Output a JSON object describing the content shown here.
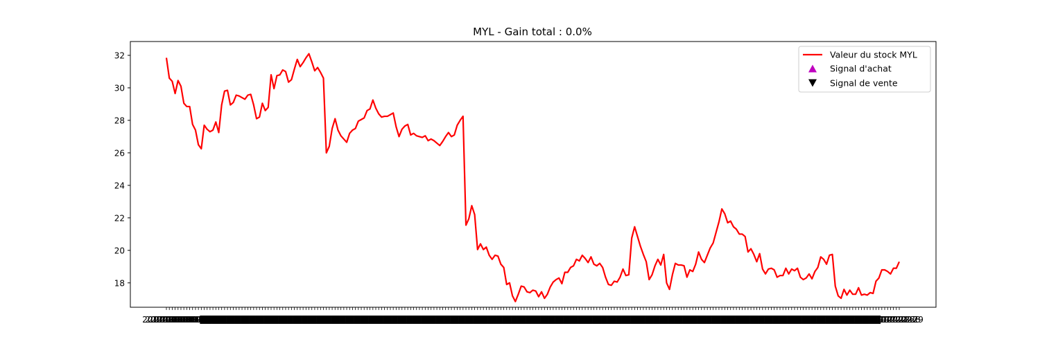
{
  "chart_data": {
    "type": "line",
    "title": "MYL - Gain total : 0.0%",
    "xlabel": "",
    "ylabel": "",
    "ylim": [
      16.5,
      32.85
    ],
    "yticks": [
      18,
      20,
      22,
      24,
      26,
      28,
      30,
      32
    ],
    "grid": false,
    "legend_position": "top-right",
    "line_color": "#ff0000",
    "buy_color": "#bf00bf",
    "sell_color": "#000000",
    "series": [
      {
        "name": "Valeur du stock MYL",
        "values": [
          31.85,
          30.6,
          30.4,
          29.65,
          30.45,
          30.1,
          29.05,
          28.85,
          28.85,
          27.75,
          27.4,
          26.5,
          26.25,
          27.7,
          27.45,
          27.3,
          27.4,
          27.9,
          27.25,
          28.95,
          29.8,
          29.85,
          28.95,
          29.1,
          29.55,
          29.5,
          29.4,
          29.3,
          29.55,
          29.6,
          28.95,
          28.1,
          28.2,
          29.05,
          28.6,
          28.8,
          30.8,
          29.95,
          30.75,
          30.8,
          31.1,
          31.0,
          30.35,
          30.5,
          31.15,
          31.75,
          31.3,
          31.55,
          31.85,
          32.1,
          31.6,
          31.05,
          31.25,
          30.95,
          30.6,
          26.0,
          26.4,
          27.5,
          28.1,
          27.4,
          27.05,
          26.85,
          26.65,
          27.2,
          27.4,
          27.5,
          27.95,
          28.05,
          28.15,
          28.6,
          28.7,
          29.25,
          28.75,
          28.4,
          28.2,
          28.25,
          28.25,
          28.35,
          28.45,
          27.6,
          27.0,
          27.45,
          27.65,
          27.75,
          27.1,
          27.2,
          27.05,
          27.0,
          26.95,
          27.05,
          26.75,
          26.85,
          26.75,
          26.6,
          26.45,
          26.7,
          27.0,
          27.25,
          27.0,
          27.1,
          27.7,
          28.0,
          28.25,
          21.55,
          21.95,
          22.75,
          22.2,
          20.05,
          20.4,
          20.05,
          20.2,
          19.7,
          19.45,
          19.7,
          19.65,
          19.15,
          18.95,
          17.9,
          18.0,
          17.2,
          16.85,
          17.3,
          17.8,
          17.75,
          17.45,
          17.4,
          17.55,
          17.5,
          17.15,
          17.45,
          17.05,
          17.3,
          17.75,
          18.05,
          18.2,
          18.3,
          17.95,
          18.65,
          18.65,
          18.95,
          19.05,
          19.45,
          19.35,
          19.7,
          19.5,
          19.25,
          19.6,
          19.15,
          19.05,
          19.2,
          18.95,
          18.35,
          17.9,
          17.85,
          18.1,
          18.05,
          18.35,
          18.85,
          18.45,
          18.5,
          20.75,
          21.45,
          20.85,
          20.25,
          19.75,
          19.3,
          18.2,
          18.5,
          19.05,
          19.45,
          19.1,
          19.75,
          18.0,
          17.6,
          18.5,
          19.2,
          19.1,
          19.1,
          19.05,
          18.35,
          18.8,
          18.7,
          19.15,
          19.9,
          19.45,
          19.25,
          19.7,
          20.15,
          20.45,
          21.1,
          21.75,
          22.55,
          22.25,
          21.7,
          21.8,
          21.45,
          21.3,
          21.0,
          21.0,
          20.85,
          19.9,
          20.1,
          19.75,
          19.3,
          19.8,
          18.85,
          18.55,
          18.85,
          18.9,
          18.8,
          18.35,
          18.45,
          18.45,
          18.9,
          18.55,
          18.85,
          18.75,
          18.9,
          18.35,
          18.2,
          18.3,
          18.55,
          18.25,
          18.7,
          18.95,
          19.6,
          19.45,
          19.15,
          19.7,
          19.75,
          17.8,
          17.2,
          17.05,
          17.6,
          17.25,
          17.55,
          17.3,
          17.3,
          17.7,
          17.25,
          17.3,
          17.25,
          17.4,
          17.35,
          18.1,
          18.3,
          18.8,
          18.8,
          18.7,
          18.55,
          18.9,
          18.9,
          19.3
        ]
      },
      {
        "name": "Signal d'achat",
        "values": []
      },
      {
        "name": "Signal de vente",
        "values": []
      }
    ],
    "xtick_labels": [
      "2017-01-03",
      "2017-01-04",
      "2017-01-05",
      "2017-01-06",
      "2017-01-09",
      "2017-01-10",
      "2017-01-11",
      "2017-01-12",
      "2017-01-13",
      "2017-01-17",
      "2017-01-18",
      "2017-01-19",
      "2017-12-20",
      "2017-12-21",
      "2017-12-22",
      "2017-12-26",
      "2017-12-27",
      "2017-12-28",
      "2017-12-29"
    ]
  }
}
